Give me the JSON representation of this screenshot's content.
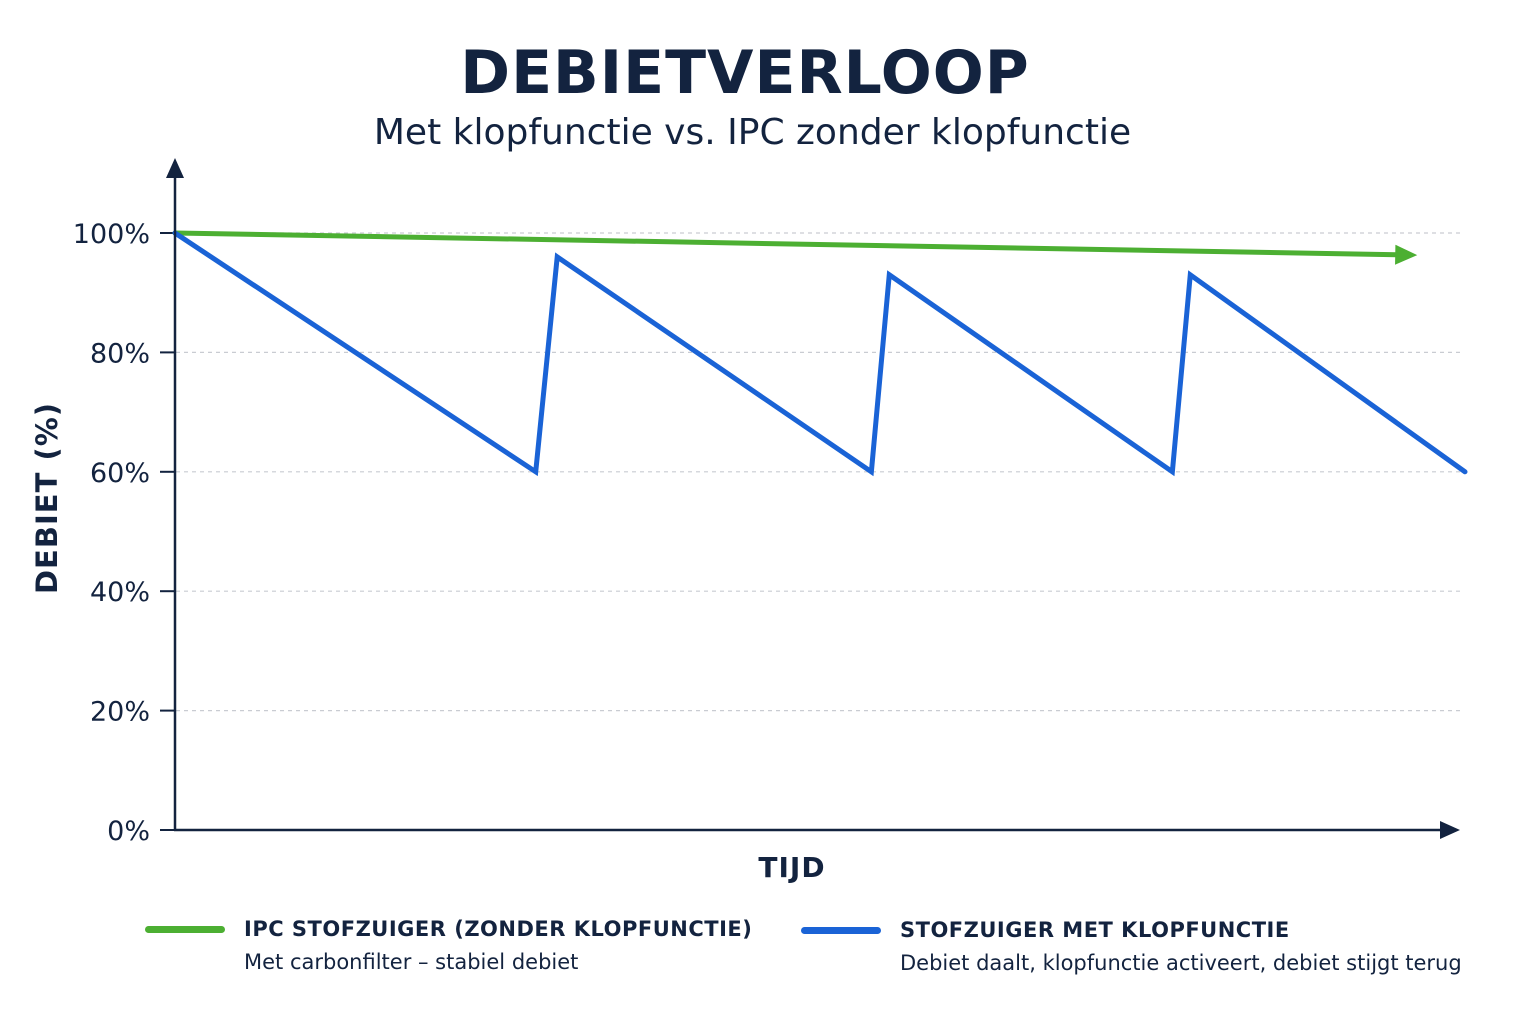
{
  "chart_data": {
    "type": "line",
    "title": "DEBIETVERLOOP",
    "subtitle": "Met klopfunctie vs. IPC zonder klopfunctie",
    "xlabel": "TIJD",
    "ylabel": "DEBIET (%)",
    "ylim": [
      0,
      110
    ],
    "xlim": [
      0,
      10.8
    ],
    "yticks": [
      0,
      20,
      40,
      60,
      80,
      100
    ],
    "ytick_labels": [
      "0%",
      "20%",
      "40%",
      "60%",
      "80%",
      "100%"
    ],
    "grid": true,
    "legend_position": "bottom",
    "series": [
      {
        "name": "IPC STOFZUIGER (ZONDER KLOPFUNCTIE)",
        "description": "Met carbonfilter – stabiel debiet",
        "color": "#4caf32",
        "style": "arrow",
        "points": [
          [
            0,
            100
          ],
          [
            10.4,
            96.3
          ]
        ]
      },
      {
        "name": "STOFZUIGER MET KLOPFUNCTIE",
        "description": "Debiet daalt, klopfunctie activeert, debiet stijgt terug",
        "color": "#1a63d6",
        "style": "line",
        "points": [
          [
            0,
            100
          ],
          [
            3.02,
            60
          ],
          [
            3.2,
            96
          ],
          [
            5.83,
            60
          ],
          [
            5.98,
            93
          ],
          [
            8.35,
            60
          ],
          [
            8.5,
            93
          ],
          [
            10.8,
            60
          ]
        ]
      }
    ]
  },
  "colors": {
    "axis": "#13233f",
    "grid": "#c9ccd2",
    "text": "#13233f"
  }
}
